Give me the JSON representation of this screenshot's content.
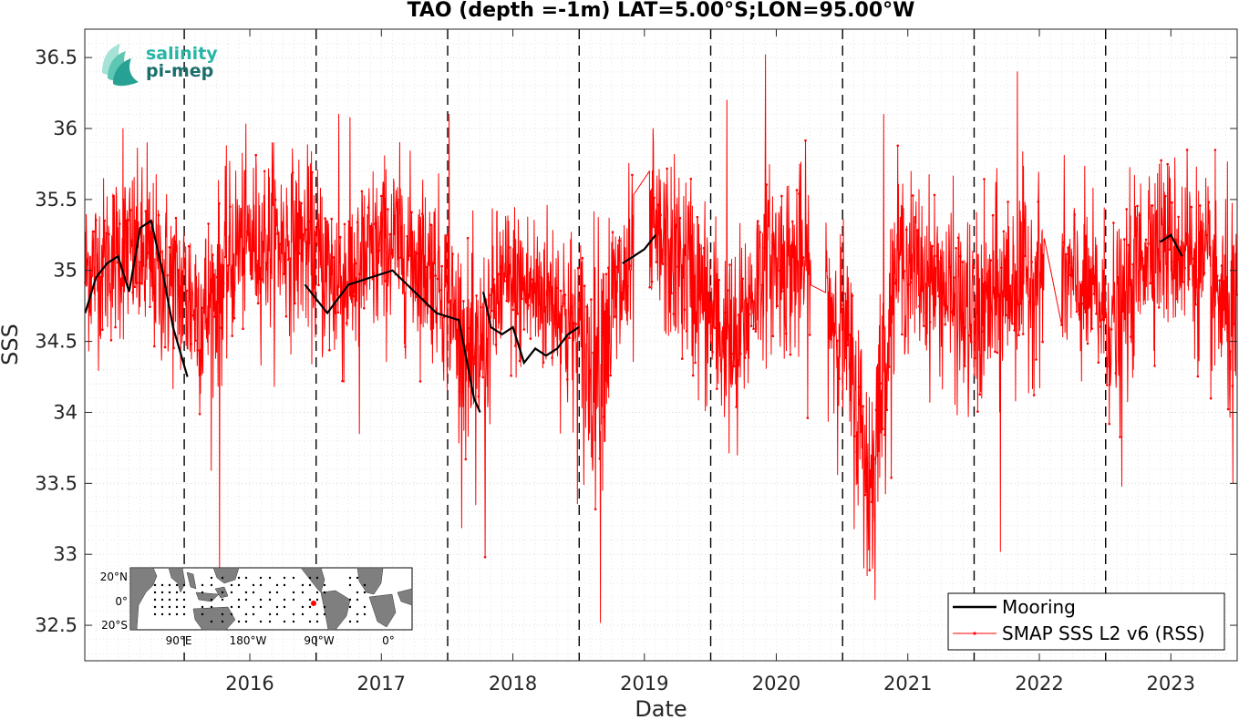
{
  "chart_data": {
    "type": "line",
    "title": "TAO (depth =-1m) LAT=5.00°S;LON=95.00°W",
    "xlabel": "Date",
    "ylabel": "SSS",
    "xlim": [
      "2015-03-31",
      "2024-01-01"
    ],
    "ylim": [
      32.25,
      36.7
    ],
    "x_ticks": [
      "2016",
      "2017",
      "2018",
      "2019",
      "2020",
      "2021",
      "2022",
      "2023"
    ],
    "y_ticks": [
      "32.5",
      "33",
      "33.5",
      "34",
      "34.5",
      "35",
      "35.5",
      "36",
      "36.5"
    ],
    "year_markers": [
      "2016-01-01",
      "2017-01-01",
      "2018-01-01",
      "2019-01-01",
      "2020-01-01",
      "2021-01-01",
      "2022-01-01",
      "2023-01-01"
    ],
    "grid": true,
    "legend_position": "bottom-right",
    "series": [
      {
        "name": "Mooring",
        "color": "#000000",
        "points": [
          [
            "2015-04-01",
            34.7
          ],
          [
            "2015-05-01",
            34.95
          ],
          [
            "2015-06-01",
            35.05
          ],
          [
            "2015-07-01",
            35.1
          ],
          [
            "2015-08-01",
            34.85
          ],
          [
            "2015-09-01",
            35.3
          ],
          [
            "2015-10-01",
            35.35
          ],
          [
            "2015-11-01",
            35.0
          ],
          [
            "2015-12-01",
            34.6
          ],
          [
            "2016-01-10",
            34.25
          ],
          null,
          [
            "2016-12-01",
            34.9
          ],
          [
            "2017-02-01",
            34.7
          ],
          [
            "2017-04-01",
            34.9
          ],
          [
            "2017-08-01",
            35.0
          ],
          [
            "2017-12-01",
            34.7
          ],
          [
            "2018-02-01",
            34.65
          ],
          [
            "2018-03-15",
            34.1
          ],
          [
            "2018-04-01",
            34.0
          ],
          null,
          [
            "2018-04-10",
            34.85
          ],
          [
            "2018-05-01",
            34.6
          ],
          [
            "2018-06-01",
            34.55
          ],
          [
            "2018-07-01",
            34.6
          ],
          [
            "2018-08-01",
            34.35
          ],
          [
            "2018-09-01",
            34.45
          ],
          [
            "2018-10-01",
            34.4
          ],
          [
            "2018-11-01",
            34.45
          ],
          [
            "2018-12-01",
            34.55
          ],
          [
            "2018-12-31",
            34.6
          ],
          null,
          [
            "2019-05-01",
            35.05
          ],
          [
            "2019-06-01",
            35.1
          ],
          [
            "2019-07-01",
            35.15
          ],
          [
            "2019-08-01",
            35.25
          ],
          null,
          [
            "2023-06-01",
            35.2
          ],
          [
            "2023-07-01",
            35.25
          ],
          [
            "2023-08-01",
            35.1
          ]
        ]
      },
      {
        "name": "SMAP SSS L2 v6 (RSS)",
        "color": "#ff0000",
        "regimes": [
          [
            "2015-04-01",
            35.0,
            0.28
          ],
          [
            "2015-08-01",
            35.15,
            0.3
          ],
          [
            "2015-12-01",
            34.9,
            0.32
          ],
          [
            "2016-03-01",
            34.7,
            0.35
          ],
          [
            "2016-06-01",
            35.2,
            0.3
          ],
          [
            "2016-12-01",
            35.2,
            0.3
          ],
          [
            "2017-03-01",
            34.9,
            0.35
          ],
          [
            "2017-08-01",
            35.2,
            0.3
          ],
          [
            "2017-12-01",
            35.0,
            0.3
          ],
          [
            "2018-03-15",
            34.3,
            0.35
          ],
          [
            "2018-06-01",
            34.9,
            0.3
          ],
          [
            "2018-11-01",
            34.8,
            0.3
          ],
          [
            "2019-02-01",
            34.3,
            0.45
          ],
          [
            "2019-05-01",
            34.9,
            0.35
          ],
          [
            "2019-08-01",
            35.2,
            0.3
          ],
          [
            "2019-11-01",
            35.0,
            0.35
          ],
          [
            "2020-03-01",
            34.4,
            0.35
          ],
          [
            "2020-06-01",
            35.1,
            0.3
          ],
          [
            "2020-10-01",
            35.0,
            0.35
          ],
          [
            "2021-01-01",
            34.6,
            0.35
          ],
          [
            "2021-03-20",
            33.5,
            0.4
          ],
          [
            "2021-06-01",
            35.1,
            0.3
          ],
          [
            "2021-10-01",
            34.9,
            0.3
          ],
          [
            "2022-01-01",
            34.6,
            0.35
          ],
          [
            "2022-04-01",
            34.9,
            0.35
          ],
          [
            "2022-08-01",
            35.0,
            0.3
          ],
          [
            "2022-12-01",
            34.8,
            0.3
          ],
          [
            "2023-02-01",
            34.6,
            0.35
          ],
          [
            "2023-05-01",
            35.25,
            0.3
          ],
          [
            "2023-09-01",
            35.1,
            0.3
          ],
          [
            "2023-12-31",
            34.6,
            0.4
          ]
        ],
        "peaks": [
          [
            "2015-07-15",
            36.0
          ],
          [
            "2015-09-20",
            35.9
          ],
          [
            "2016-04-08",
            32.85
          ],
          [
            "2016-09-01",
            35.9
          ],
          [
            "2017-03-05",
            36.1
          ],
          [
            "2017-05-01",
            33.85
          ],
          [
            "2018-01-05",
            36.1
          ],
          [
            "2018-04-15",
            32.98
          ],
          [
            "2018-03-20",
            33.35
          ],
          [
            "2019-03-01",
            32.52
          ],
          [
            "2019-07-25",
            36.0
          ],
          [
            "2020-01-10",
            35.2
          ],
          [
            "2020-02-15",
            36.2
          ],
          [
            "2020-03-15",
            33.7
          ],
          [
            "2020-06-01",
            36.52
          ],
          [
            "2021-03-10",
            32.85
          ],
          [
            "2021-03-25",
            32.9
          ],
          [
            "2021-04-25",
            36.1
          ],
          [
            "2022-03-15",
            33.02
          ],
          [
            "2022-05-01",
            36.4
          ],
          [
            "2023-02-15",
            33.48
          ],
          [
            "2023-08-15",
            35.85
          ],
          [
            "2023-12-20",
            33.5
          ]
        ],
        "gaps": [
          [
            "2019-06-01",
            "2019-07-15"
          ],
          [
            "2020-10-05",
            "2020-11-15"
          ],
          [
            "2022-07-15",
            "2022-09-01"
          ]
        ]
      }
    ]
  },
  "inset_map": {
    "lat_labels": [
      "20°N",
      "0°",
      "20°S"
    ],
    "lon_labels": [
      "90°E",
      "180°W",
      "90°W",
      "0°"
    ],
    "ocean_color": "#ffffff",
    "land_color": "#7f7f7f",
    "station_color": "#000000",
    "selected_color": "#ff0000"
  },
  "logo": {
    "line1": "salinity",
    "line2": "pi-mep",
    "color1": "#27b5a3",
    "color2": "#1a6f6a"
  }
}
